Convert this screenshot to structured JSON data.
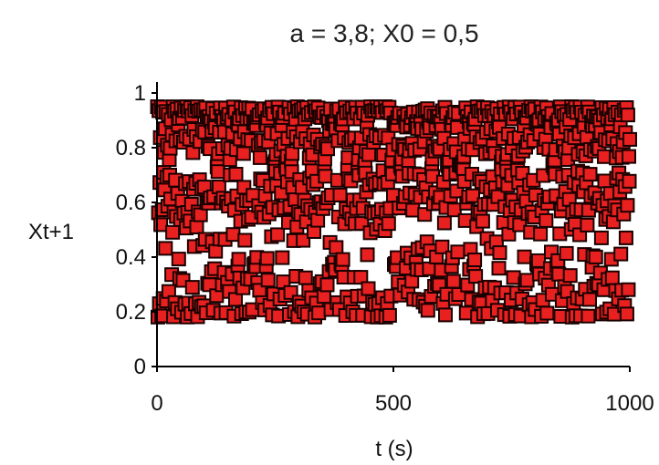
{
  "chart_data": {
    "type": "scatter",
    "title": "a = 3,8; X0 = 0,5",
    "xlabel": "t (s)",
    "ylabel": "Xt+1",
    "xlim": [
      0,
      1000
    ],
    "ylim": [
      0,
      1
    ],
    "x_ticks": [
      0,
      500,
      1000
    ],
    "y_ticks": [
      0,
      0.2,
      0.4,
      0.6,
      0.8,
      1
    ],
    "x_tick_labels": [
      "0",
      "500",
      "1000"
    ],
    "y_tick_labels": [
      "0",
      "0.2",
      "0.4",
      "0.6",
      "0.8",
      "1"
    ],
    "grid": false,
    "legend": "none",
    "logistic_map": {
      "a": 3.8,
      "x0": 0.5,
      "t_start": 1,
      "t_end": 1000
    },
    "marker": "square",
    "colors": {
      "marker_fill": "#e8201f",
      "marker_edge": "#1a0000",
      "axis": "#000000"
    }
  }
}
